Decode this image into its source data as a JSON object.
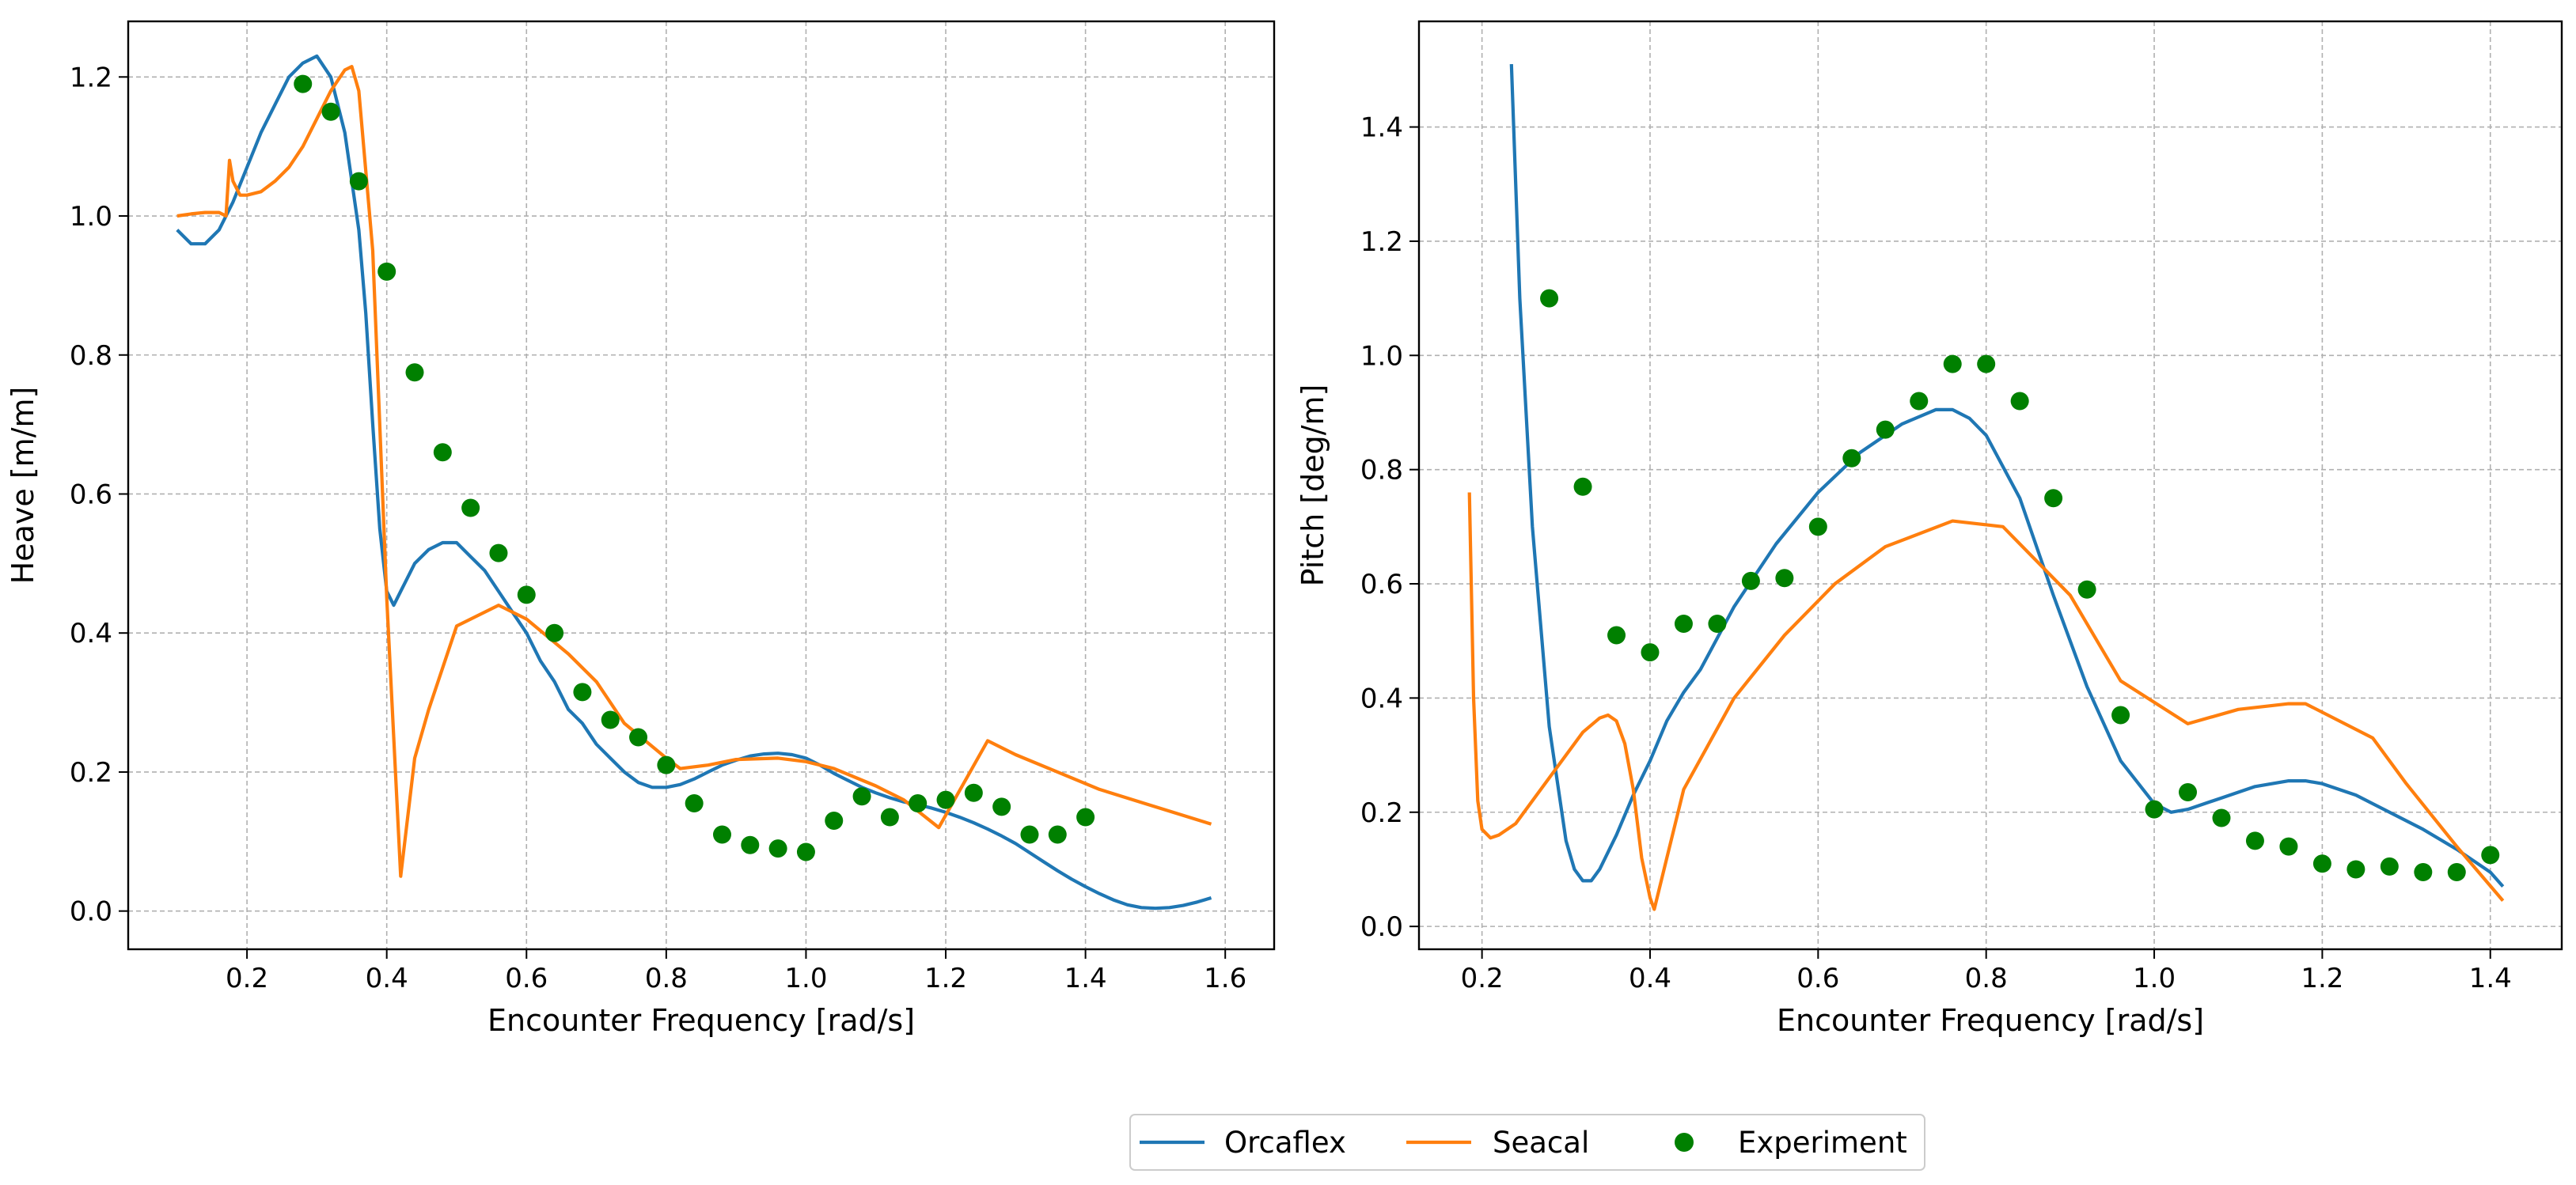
{
  "colors": {
    "orcaflex": "#1f77b4",
    "seacal": "#ff7f0e",
    "experiment": "#008000"
  },
  "legend": {
    "position": "bottom-center",
    "entries": [
      "Orcaflex",
      "Seacal",
      "Experiment"
    ]
  },
  "chart_data": [
    {
      "type": "line",
      "xlabel": "Encounter Frequency [rad/s]",
      "ylabel": "Heave [m/m]",
      "xlim": [
        0.03,
        1.67
      ],
      "ylim": [
        -0.055,
        1.28
      ],
      "xticks": [
        0.2,
        0.4,
        0.6,
        0.8,
        1.0,
        1.2,
        1.4,
        1.6
      ],
      "xtick_labels": [
        "0.2",
        "0.4",
        "0.6",
        "0.8",
        "1.0",
        "1.2",
        "1.4",
        "1.6"
      ],
      "yticks": [
        0.0,
        0.2,
        0.4,
        0.6,
        0.8,
        1.0,
        1.2
      ],
      "ytick_labels": [
        "0.0",
        "0.2",
        "0.4",
        "0.6",
        "0.8",
        "1.0",
        "1.2"
      ],
      "grid": true,
      "series": [
        {
          "name": "Orcaflex",
          "kind": "line",
          "x": [
            0.1,
            0.12,
            0.14,
            0.16,
            0.18,
            0.2,
            0.22,
            0.24,
            0.26,
            0.28,
            0.3,
            0.32,
            0.34,
            0.36,
            0.37,
            0.38,
            0.39,
            0.4,
            0.41,
            0.42,
            0.44,
            0.46,
            0.48,
            0.5,
            0.52,
            0.54,
            0.56,
            0.58,
            0.6,
            0.62,
            0.64,
            0.66,
            0.68,
            0.7,
            0.72,
            0.74,
            0.76,
            0.78,
            0.8,
            0.82,
            0.84,
            0.86,
            0.88,
            0.9,
            0.92,
            0.94,
            0.96,
            0.98,
            1.0,
            1.02,
            1.04,
            1.06,
            1.08,
            1.1,
            1.12,
            1.14,
            1.16,
            1.18,
            1.2,
            1.22,
            1.24,
            1.26,
            1.28,
            1.3,
            1.32,
            1.34,
            1.36,
            1.38,
            1.4,
            1.42,
            1.44,
            1.46,
            1.48,
            1.5,
            1.52,
            1.54,
            1.56,
            1.58
          ],
          "y": [
            0.98,
            0.96,
            0.96,
            0.98,
            1.02,
            1.07,
            1.12,
            1.16,
            1.2,
            1.22,
            1.23,
            1.2,
            1.12,
            0.98,
            0.86,
            0.7,
            0.55,
            0.46,
            0.44,
            0.46,
            0.5,
            0.52,
            0.53,
            0.53,
            0.51,
            0.49,
            0.46,
            0.43,
            0.4,
            0.36,
            0.33,
            0.29,
            0.27,
            0.24,
            0.22,
            0.2,
            0.185,
            0.178,
            0.178,
            0.182,
            0.19,
            0.2,
            0.21,
            0.217,
            0.223,
            0.226,
            0.227,
            0.225,
            0.22,
            0.21,
            0.198,
            0.188,
            0.178,
            0.17,
            0.163,
            0.157,
            0.153,
            0.148,
            0.142,
            0.135,
            0.127,
            0.118,
            0.108,
            0.097,
            0.084,
            0.071,
            0.058,
            0.046,
            0.035,
            0.025,
            0.016,
            0.009,
            0.005,
            0.004,
            0.005,
            0.008,
            0.013,
            0.019
          ]
        },
        {
          "name": "Seacal",
          "kind": "line",
          "x": [
            0.1,
            0.12,
            0.14,
            0.16,
            0.17,
            0.175,
            0.18,
            0.19,
            0.2,
            0.22,
            0.24,
            0.26,
            0.28,
            0.3,
            0.32,
            0.34,
            0.35,
            0.36,
            0.38,
            0.4,
            0.42,
            0.44,
            0.46,
            0.5,
            0.56,
            0.6,
            0.66,
            0.7,
            0.74,
            0.8,
            0.82,
            0.86,
            0.9,
            0.96,
            1.0,
            1.04,
            1.1,
            1.14,
            1.19,
            1.26,
            1.3,
            1.36,
            1.42,
            1.5,
            1.58
          ],
          "y": [
            1.0,
            1.003,
            1.005,
            1.005,
            1.0,
            1.08,
            1.05,
            1.03,
            1.03,
            1.035,
            1.05,
            1.07,
            1.1,
            1.14,
            1.18,
            1.21,
            1.215,
            1.18,
            0.95,
            0.45,
            0.05,
            0.22,
            0.29,
            0.41,
            0.44,
            0.42,
            0.37,
            0.33,
            0.27,
            0.22,
            0.205,
            0.21,
            0.218,
            0.22,
            0.215,
            0.205,
            0.18,
            0.16,
            0.12,
            0.245,
            0.225,
            0.2,
            0.175,
            0.15,
            0.125
          ]
        },
        {
          "name": "Experiment",
          "kind": "scatter",
          "x": [
            0.28,
            0.32,
            0.36,
            0.4,
            0.44,
            0.48,
            0.52,
            0.56,
            0.6,
            0.64,
            0.68,
            0.72,
            0.76,
            0.8,
            0.84,
            0.88,
            0.92,
            0.96,
            1.0,
            1.04,
            1.08,
            1.12,
            1.16,
            1.2,
            1.24,
            1.28,
            1.32,
            1.36,
            1.4
          ],
          "y": [
            1.19,
            1.15,
            1.05,
            0.92,
            0.775,
            0.66,
            0.58,
            0.515,
            0.455,
            0.4,
            0.315,
            0.275,
            0.25,
            0.21,
            0.155,
            0.11,
            0.095,
            0.09,
            0.085,
            0.13,
            0.165,
            0.135,
            0.155,
            0.16,
            0.17,
            0.15,
            0.11,
            0.11,
            0.135
          ]
        }
      ]
    },
    {
      "type": "line",
      "xlabel": "Encounter Frequency [rad/s]",
      "ylabel": "Pitch [deg/m]",
      "xlim": [
        0.125,
        1.485
      ],
      "ylim": [
        -0.04,
        1.585
      ],
      "xticks": [
        0.2,
        0.4,
        0.6,
        0.8,
        1.0,
        1.2,
        1.4
      ],
      "xtick_labels": [
        "0.2",
        "0.4",
        "0.6",
        "0.8",
        "1.0",
        "1.2",
        "1.4"
      ],
      "yticks": [
        0.0,
        0.2,
        0.4,
        0.6,
        0.8,
        1.0,
        1.2,
        1.4
      ],
      "ytick_labels": [
        "0.0",
        "0.2",
        "0.4",
        "0.6",
        "0.8",
        "1.0",
        "1.2",
        "1.4"
      ],
      "grid": true,
      "series": [
        {
          "name": "Orcaflex",
          "kind": "line",
          "x": [
            0.235,
            0.245,
            0.26,
            0.28,
            0.3,
            0.31,
            0.32,
            0.33,
            0.34,
            0.36,
            0.38,
            0.4,
            0.42,
            0.44,
            0.46,
            0.5,
            0.55,
            0.6,
            0.65,
            0.7,
            0.74,
            0.76,
            0.78,
            0.8,
            0.84,
            0.88,
            0.92,
            0.96,
            1.0,
            1.02,
            1.04,
            1.08,
            1.12,
            1.16,
            1.18,
            1.2,
            1.24,
            1.28,
            1.32,
            1.36,
            1.4,
            1.415
          ],
          "y": [
            1.51,
            1.1,
            0.7,
            0.35,
            0.15,
            0.1,
            0.08,
            0.08,
            0.1,
            0.16,
            0.23,
            0.29,
            0.36,
            0.41,
            0.45,
            0.56,
            0.67,
            0.76,
            0.83,
            0.88,
            0.905,
            0.905,
            0.89,
            0.86,
            0.75,
            0.58,
            0.42,
            0.29,
            0.215,
            0.2,
            0.205,
            0.225,
            0.245,
            0.255,
            0.255,
            0.25,
            0.23,
            0.2,
            0.17,
            0.135,
            0.095,
            0.07
          ]
        },
        {
          "name": "Seacal",
          "kind": "line",
          "x": [
            0.185,
            0.19,
            0.195,
            0.2,
            0.21,
            0.22,
            0.24,
            0.28,
            0.32,
            0.34,
            0.35,
            0.36,
            0.37,
            0.38,
            0.39,
            0.4,
            0.405,
            0.42,
            0.44,
            0.5,
            0.56,
            0.62,
            0.68,
            0.76,
            0.82,
            0.9,
            0.96,
            1.04,
            1.1,
            1.16,
            1.18,
            1.26,
            1.3,
            1.36,
            1.415
          ],
          "y": [
            0.76,
            0.4,
            0.22,
            0.17,
            0.155,
            0.16,
            0.18,
            0.26,
            0.34,
            0.365,
            0.37,
            0.36,
            0.32,
            0.24,
            0.12,
            0.05,
            0.03,
            0.12,
            0.24,
            0.4,
            0.51,
            0.6,
            0.665,
            0.71,
            0.7,
            0.58,
            0.43,
            0.355,
            0.38,
            0.39,
            0.39,
            0.33,
            0.25,
            0.14,
            0.045
          ]
        },
        {
          "name": "Experiment",
          "kind": "scatter",
          "x": [
            0.28,
            0.32,
            0.36,
            0.4,
            0.44,
            0.48,
            0.52,
            0.56,
            0.6,
            0.64,
            0.68,
            0.72,
            0.76,
            0.8,
            0.84,
            0.88,
            0.92,
            0.96,
            1.0,
            1.04,
            1.08,
            1.12,
            1.16,
            1.2,
            1.24,
            1.28,
            1.32,
            1.36,
            1.4
          ],
          "y": [
            1.1,
            0.77,
            0.51,
            0.48,
            0.53,
            0.53,
            0.605,
            0.61,
            0.7,
            0.82,
            0.87,
            0.92,
            0.985,
            0.985,
            0.92,
            0.75,
            0.59,
            0.37,
            0.205,
            0.235,
            0.19,
            0.15,
            0.14,
            0.11,
            0.1,
            0.105,
            0.095,
            0.095,
            0.125
          ]
        }
      ]
    }
  ]
}
